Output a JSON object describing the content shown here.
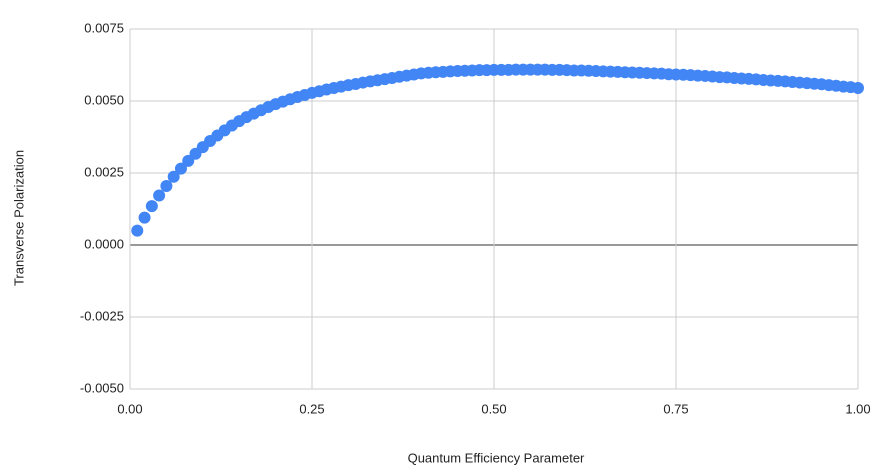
{
  "chart_data": {
    "type": "scatter",
    "x_label": "Quantum Efficiency Parameter",
    "y_label": "Transverse Polarization",
    "color": "#4285f4",
    "grid": true,
    "xlim": [
      0,
      1
    ],
    "ylim": [
      -0.005,
      0.0075
    ],
    "xticks": [
      {
        "value": 0,
        "label": "0.00"
      },
      0.25,
      {
        "value": 0.5,
        "label": "0.50"
      },
      0.75,
      {
        "value": 1,
        "label": "1.00"
      }
    ],
    "yticks": [
      {
        "value": -0.005,
        "label": "-0.0050"
      },
      -0.0025,
      {
        "value": 0,
        "label": "0.0000"
      },
      0.0025,
      {
        "value": 0.005,
        "label": "0.0050"
      },
      0.0075
    ],
    "x": [
      0.01,
      0.02,
      0.03,
      0.04,
      0.05,
      0.06,
      0.07,
      0.08,
      0.09,
      0.1,
      0.11,
      0.12,
      0.13,
      0.14,
      0.15,
      0.16,
      0.17,
      0.18,
      0.19,
      0.2,
      0.21,
      0.22,
      0.23,
      0.24,
      0.25,
      0.26,
      0.27,
      0.28,
      0.29,
      0.3,
      0.31,
      0.32,
      0.33,
      0.34,
      0.35,
      0.36,
      0.37,
      0.38,
      0.39,
      0.4,
      0.41,
      0.42,
      0.43,
      0.44,
      0.45,
      0.46,
      0.47,
      0.48,
      0.49,
      0.5,
      0.51,
      0.52,
      0.53,
      0.54,
      0.55,
      0.56,
      0.57,
      0.58,
      0.59,
      0.6,
      0.61,
      0.62,
      0.63,
      0.64,
      0.65,
      0.66,
      0.67,
      0.68,
      0.69,
      0.7,
      0.71,
      0.72,
      0.73,
      0.74,
      0.75,
      0.76,
      0.77,
      0.78,
      0.79,
      0.8,
      0.81,
      0.82,
      0.83,
      0.84,
      0.85,
      0.86,
      0.87,
      0.88,
      0.89,
      0.9,
      0.91,
      0.92,
      0.93,
      0.94,
      0.95,
      0.96,
      0.97,
      0.98,
      0.99,
      1.0
    ],
    "values": [
      0.0005,
      0.00095,
      0.00135,
      0.00172,
      0.00205,
      0.00237,
      0.00265,
      0.00292,
      0.00317,
      0.0034,
      0.00361,
      0.0038,
      0.00398,
      0.00415,
      0.0043,
      0.00444,
      0.00456,
      0.00468,
      0.00479,
      0.00489,
      0.00498,
      0.00506,
      0.00514,
      0.00521,
      0.00528,
      0.00534,
      0.0054,
      0.00545,
      0.0055,
      0.00555,
      0.00559,
      0.00564,
      0.00568,
      0.00572,
      0.00576,
      0.0058,
      0.00584,
      0.00588,
      0.00592,
      0.00596,
      0.00598,
      0.006,
      0.00601,
      0.00603,
      0.00604,
      0.00605,
      0.00606,
      0.00607,
      0.00607,
      0.00608,
      0.00608,
      0.00608,
      0.00609,
      0.00609,
      0.00609,
      0.00609,
      0.00609,
      0.00608,
      0.00608,
      0.00607,
      0.00606,
      0.00606,
      0.00605,
      0.00604,
      0.00603,
      0.00602,
      0.00601,
      0.006,
      0.00599,
      0.00598,
      0.00597,
      0.00596,
      0.00595,
      0.00593,
      0.00592,
      0.00591,
      0.0059,
      0.00588,
      0.00587,
      0.00585,
      0.00583,
      0.00582,
      0.0058,
      0.00578,
      0.00577,
      0.00575,
      0.00573,
      0.00571,
      0.0057,
      0.00568,
      0.00566,
      0.00564,
      0.00562,
      0.0056,
      0.00558,
      0.00555,
      0.00553,
      0.0055,
      0.00548,
      0.00545
    ]
  }
}
